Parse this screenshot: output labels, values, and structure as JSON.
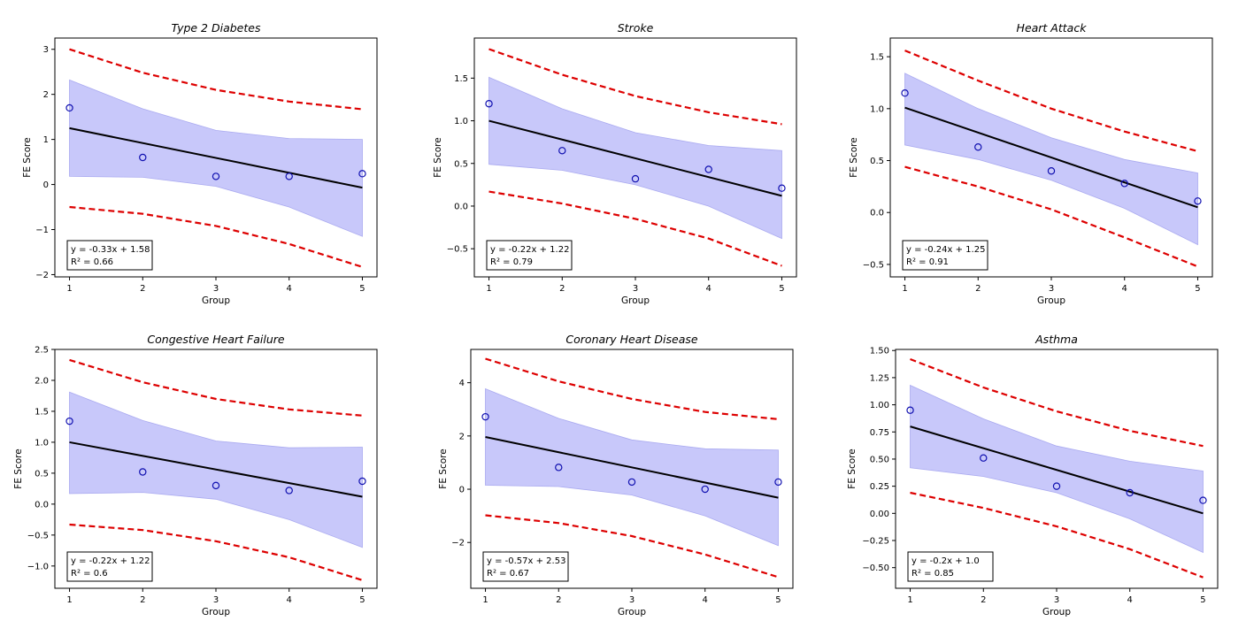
{
  "colors": {
    "scatter": "#1010b0",
    "fit": "#000000",
    "confidence_band": "#c8c8fa",
    "confidence_edge": "#aaaaf0",
    "prediction": "#dd0000"
  },
  "chart_data": [
    {
      "type": "scatter",
      "title": "Type 2 Diabetes",
      "xlabel": "Group",
      "ylabel": "FE Score",
      "x": [
        1,
        2,
        3,
        4,
        5
      ],
      "y": [
        1.7,
        0.6,
        0.18,
        0.18,
        0.24
      ],
      "fit": {
        "slope": -0.33,
        "intercept": 1.58
      },
      "ci_lower": [
        0.18,
        0.16,
        -0.04,
        -0.5,
        -1.15
      ],
      "ci_upper": [
        2.32,
        1.68,
        1.2,
        1.02,
        1.0
      ],
      "pi_lower": [
        -0.5,
        -0.65,
        -0.92,
        -1.32,
        -1.83
      ],
      "pi_upper": [
        3.0,
        2.48,
        2.1,
        1.84,
        1.67
      ],
      "equation": "y = -0.33x + 1.58",
      "r2_label": "R² = 0.66",
      "xlim": [
        0.8,
        5.2
      ],
      "ylim": [
        -2.05,
        3.25
      ],
      "xticks": [
        1,
        2,
        3,
        4,
        5
      ],
      "yticks": [
        -2,
        -1,
        0,
        1,
        2,
        3
      ],
      "ytick_labels": [
        "−2",
        "−1",
        "0",
        "1",
        "2",
        "3"
      ]
    },
    {
      "type": "scatter",
      "title": "Stroke",
      "xlabel": "Group",
      "ylabel": "FE Score",
      "x": [
        1,
        2,
        3,
        4,
        5
      ],
      "y": [
        1.2,
        0.65,
        0.32,
        0.43,
        0.21
      ],
      "fit": {
        "slope": -0.22,
        "intercept": 1.22
      },
      "ci_lower": [
        0.49,
        0.42,
        0.25,
        0.0,
        -0.38
      ],
      "ci_upper": [
        1.51,
        1.14,
        0.86,
        0.71,
        0.65
      ],
      "pi_lower": [
        0.17,
        0.03,
        -0.15,
        -0.38,
        -0.7
      ],
      "pi_upper": [
        1.84,
        1.54,
        1.29,
        1.1,
        0.96
      ],
      "equation": "y = -0.22x + 1.22",
      "r2_label": "R² = 0.79",
      "xlim": [
        0.8,
        5.2
      ],
      "ylim": [
        -0.83,
        1.97
      ],
      "xticks": [
        1,
        2,
        3,
        4,
        5
      ],
      "yticks": [
        -0.5,
        0.0,
        0.5,
        1.0,
        1.5
      ],
      "ytick_labels": [
        "−0.5",
        "0.0",
        "0.5",
        "1.0",
        "1.5"
      ]
    },
    {
      "type": "scatter",
      "title": "Heart Attack",
      "xlabel": "Group",
      "ylabel": "FE Score",
      "x": [
        1,
        2,
        3,
        4,
        5
      ],
      "y": [
        1.15,
        0.63,
        0.4,
        0.28,
        0.11
      ],
      "fit": {
        "slope": -0.24,
        "intercept": 1.25
      },
      "ci_lower": [
        0.65,
        0.51,
        0.31,
        0.04,
        -0.31
      ],
      "ci_upper": [
        1.34,
        1.0,
        0.72,
        0.51,
        0.38
      ],
      "pi_lower": [
        0.44,
        0.25,
        0.03,
        -0.24,
        -0.52
      ],
      "pi_upper": [
        1.56,
        1.27,
        1.0,
        0.78,
        0.59
      ],
      "equation": "y = -0.24x + 1.25",
      "r2_label": "R² = 0.91",
      "xlim": [
        0.8,
        5.2
      ],
      "ylim": [
        -0.62,
        1.68
      ],
      "xticks": [
        1,
        2,
        3,
        4,
        5
      ],
      "yticks": [
        -0.5,
        0.0,
        0.5,
        1.0,
        1.5
      ],
      "ytick_labels": [
        "−0.5",
        "0.0",
        "0.5",
        "1.0",
        "1.5"
      ]
    },
    {
      "type": "scatter",
      "title": "Congestive Heart Failure",
      "xlabel": "Group",
      "ylabel": "FE Score",
      "x": [
        1,
        2,
        3,
        4,
        5
      ],
      "y": [
        1.34,
        0.52,
        0.3,
        0.22,
        0.37
      ],
      "fit": {
        "slope": -0.22,
        "intercept": 1.22
      },
      "ci_lower": [
        0.17,
        0.19,
        0.08,
        -0.25,
        -0.7
      ],
      "ci_upper": [
        1.81,
        1.35,
        1.02,
        0.91,
        0.92
      ],
      "pi_lower": [
        -0.33,
        -0.42,
        -0.6,
        -0.86,
        -1.23
      ],
      "pi_upper": [
        2.33,
        1.97,
        1.7,
        1.53,
        1.43
      ],
      "equation": "y = -0.22x + 1.22",
      "r2_label": "R² = 0.6",
      "xlim": [
        0.8,
        5.2
      ],
      "ylim": [
        -1.36,
        2.5
      ],
      "xticks": [
        1,
        2,
        3,
        4,
        5
      ],
      "yticks": [
        -1.0,
        -0.5,
        0.0,
        0.5,
        1.0,
        1.5,
        2.0,
        2.5
      ],
      "ytick_labels": [
        "−1.0",
        "−0.5",
        "0.0",
        "0.5",
        "1.0",
        "1.5",
        "2.0",
        "2.5"
      ]
    },
    {
      "type": "scatter",
      "title": "Coronary Heart Disease",
      "xlabel": "Group",
      "ylabel": "FE Score",
      "x": [
        1,
        2,
        3,
        4,
        5
      ],
      "y": [
        2.72,
        0.82,
        0.27,
        0.0,
        0.27
      ],
      "fit": {
        "slope": -0.57,
        "intercept": 2.53
      },
      "ci_lower": [
        0.15,
        0.1,
        -0.22,
        -1.0,
        -2.12
      ],
      "ci_upper": [
        3.77,
        2.66,
        1.85,
        1.52,
        1.47
      ],
      "pi_lower": [
        -0.98,
        -1.27,
        -1.76,
        -2.45,
        -3.3
      ],
      "pi_upper": [
        4.9,
        4.05,
        3.39,
        2.9,
        2.63
      ],
      "equation": "y = -0.57x + 2.53",
      "r2_label": "R² = 0.67",
      "xlim": [
        0.8,
        5.2
      ],
      "ylim": [
        -3.72,
        5.25
      ],
      "xticks": [
        1,
        2,
        3,
        4,
        5
      ],
      "yticks": [
        -2,
        0,
        2,
        4
      ],
      "ytick_labels": [
        "−2",
        "0",
        "2",
        "4"
      ]
    },
    {
      "type": "scatter",
      "title": "Asthma",
      "xlabel": "Group",
      "ylabel": "FE Score",
      "x": [
        1,
        2,
        3,
        4,
        5
      ],
      "y": [
        0.95,
        0.51,
        0.25,
        0.19,
        0.12
      ],
      "fit": {
        "slope": -0.2,
        "intercept": 1.0
      },
      "ci_lower": [
        0.42,
        0.34,
        0.19,
        -0.05,
        -0.36
      ],
      "ci_upper": [
        1.18,
        0.87,
        0.62,
        0.48,
        0.39
      ],
      "pi_lower": [
        0.19,
        0.05,
        -0.12,
        -0.33,
        -0.59
      ],
      "pi_upper": [
        1.42,
        1.16,
        0.94,
        0.76,
        0.62
      ],
      "equation": "y = -0.2x + 1.0",
      "r2_label": "R² = 0.85",
      "xlim": [
        0.8,
        5.2
      ],
      "ylim": [
        -0.69,
        1.51
      ],
      "xticks": [
        1,
        2,
        3,
        4,
        5
      ],
      "yticks": [
        -0.5,
        -0.25,
        0.0,
        0.25,
        0.5,
        0.75,
        1.0,
        1.25,
        1.5
      ],
      "ytick_labels": [
        "−0.50",
        "−0.25",
        "0.00",
        "0.25",
        "0.50",
        "0.75",
        "1.00",
        "1.25",
        "1.50"
      ]
    }
  ]
}
